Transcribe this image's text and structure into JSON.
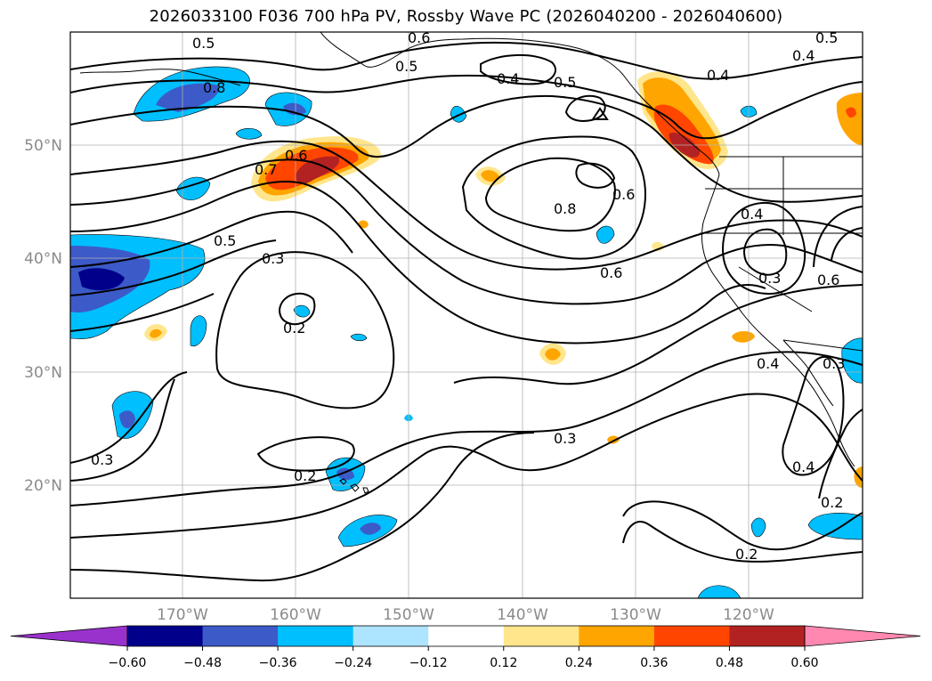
{
  "title": "2026033100 F036 700 hPa PV, Rossby Wave PC (2026040200 - 2026040600)",
  "latitude_labels": [
    "50°N",
    "40°N",
    "30°N",
    "20°N"
  ],
  "longitude_labels": [
    "170°W",
    "160°W",
    "150°W",
    "140°W",
    "130°W",
    "120°W"
  ],
  "contour_labels": [
    "0.5",
    "0.6",
    "0.5",
    "0.8",
    "0.4",
    "0.5",
    "0.4",
    "0.5",
    "0.4",
    "0.7",
    "0.6",
    "0.5",
    "0.3",
    "0.8",
    "0.6",
    "0.6",
    "0.4",
    "0.3",
    "0.6",
    "0.2",
    "0.4",
    "0.3",
    "0.3",
    "0.3",
    "0.2",
    "0.4",
    "0.2",
    "0.2"
  ],
  "colorbar": {
    "ticks": [
      "−0.60",
      "−0.48",
      "−0.36",
      "−0.24",
      "−0.12",
      "0.12",
      "0.24",
      "0.36",
      "0.48",
      "0.60"
    ],
    "colors": [
      "#9932cc",
      "#00008b",
      "#3c5ac8",
      "#00bfff",
      "#ade4ff",
      "#ffffff",
      "#ffe68c",
      "#ffa500",
      "#ff4500",
      "#b22222",
      "#ff88b0"
    ]
  },
  "map_colors": {
    "grid": "#b0b0b0",
    "contour": "#000000",
    "coast": "#000000"
  }
}
